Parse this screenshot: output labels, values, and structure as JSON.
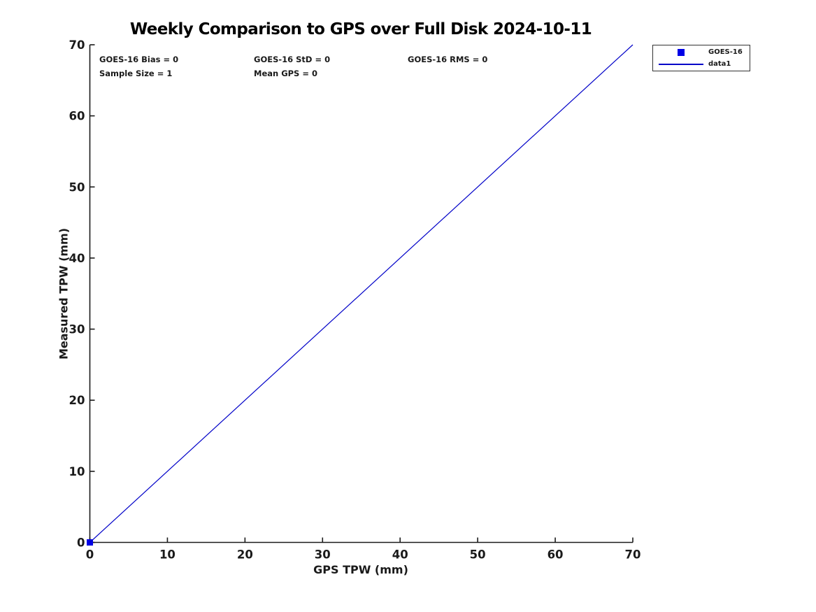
{
  "title": "Weekly Comparison to GPS over Full Disk 2024-10-11",
  "annotations": {
    "bias": "GOES-16 Bias = 0",
    "std": "GOES-16 StD = 0",
    "rms": "GOES-16 RMS = 0",
    "sample_size": "Sample Size = 1",
    "mean_gps": "Mean GPS = 0"
  },
  "legend": {
    "entries": [
      {
        "label": "GOES-16",
        "swatch": "square-marker",
        "color": "#0000e6"
      },
      {
        "label": "data1",
        "swatch": "line",
        "color": "#0000c8"
      }
    ]
  },
  "colors": {
    "axis": "#1a1a1a",
    "tick_label": "#1a1a1a",
    "marker_blue": "#0000e6",
    "line_blue": "#0000c8",
    "background": "#ffffff"
  },
  "chart_data": {
    "type": "scatter",
    "title": "Weekly Comparison to GPS over Full Disk 2024-10-11",
    "xlabel": "GPS TPW (mm)",
    "ylabel": "Measured TPW (mm)",
    "xlim": [
      0,
      70
    ],
    "ylim": [
      0,
      70
    ],
    "xticks": [
      0,
      10,
      20,
      30,
      40,
      50,
      60,
      70
    ],
    "yticks": [
      0,
      10,
      20,
      30,
      40,
      50,
      60,
      70
    ],
    "grid": false,
    "legend_position": "outside-top-right",
    "series": [
      {
        "name": "GOES-16",
        "type": "scatter",
        "marker": "square",
        "color": "#0000e6",
        "points": [
          [
            0,
            0
          ]
        ]
      },
      {
        "name": "data1",
        "type": "line",
        "color": "#0000c8",
        "points": [
          [
            0,
            0
          ],
          [
            70,
            70
          ]
        ]
      }
    ],
    "stats": {
      "bias": 0,
      "std": 0,
      "rms": 0,
      "sample_size": 1,
      "mean_gps": 0
    }
  }
}
